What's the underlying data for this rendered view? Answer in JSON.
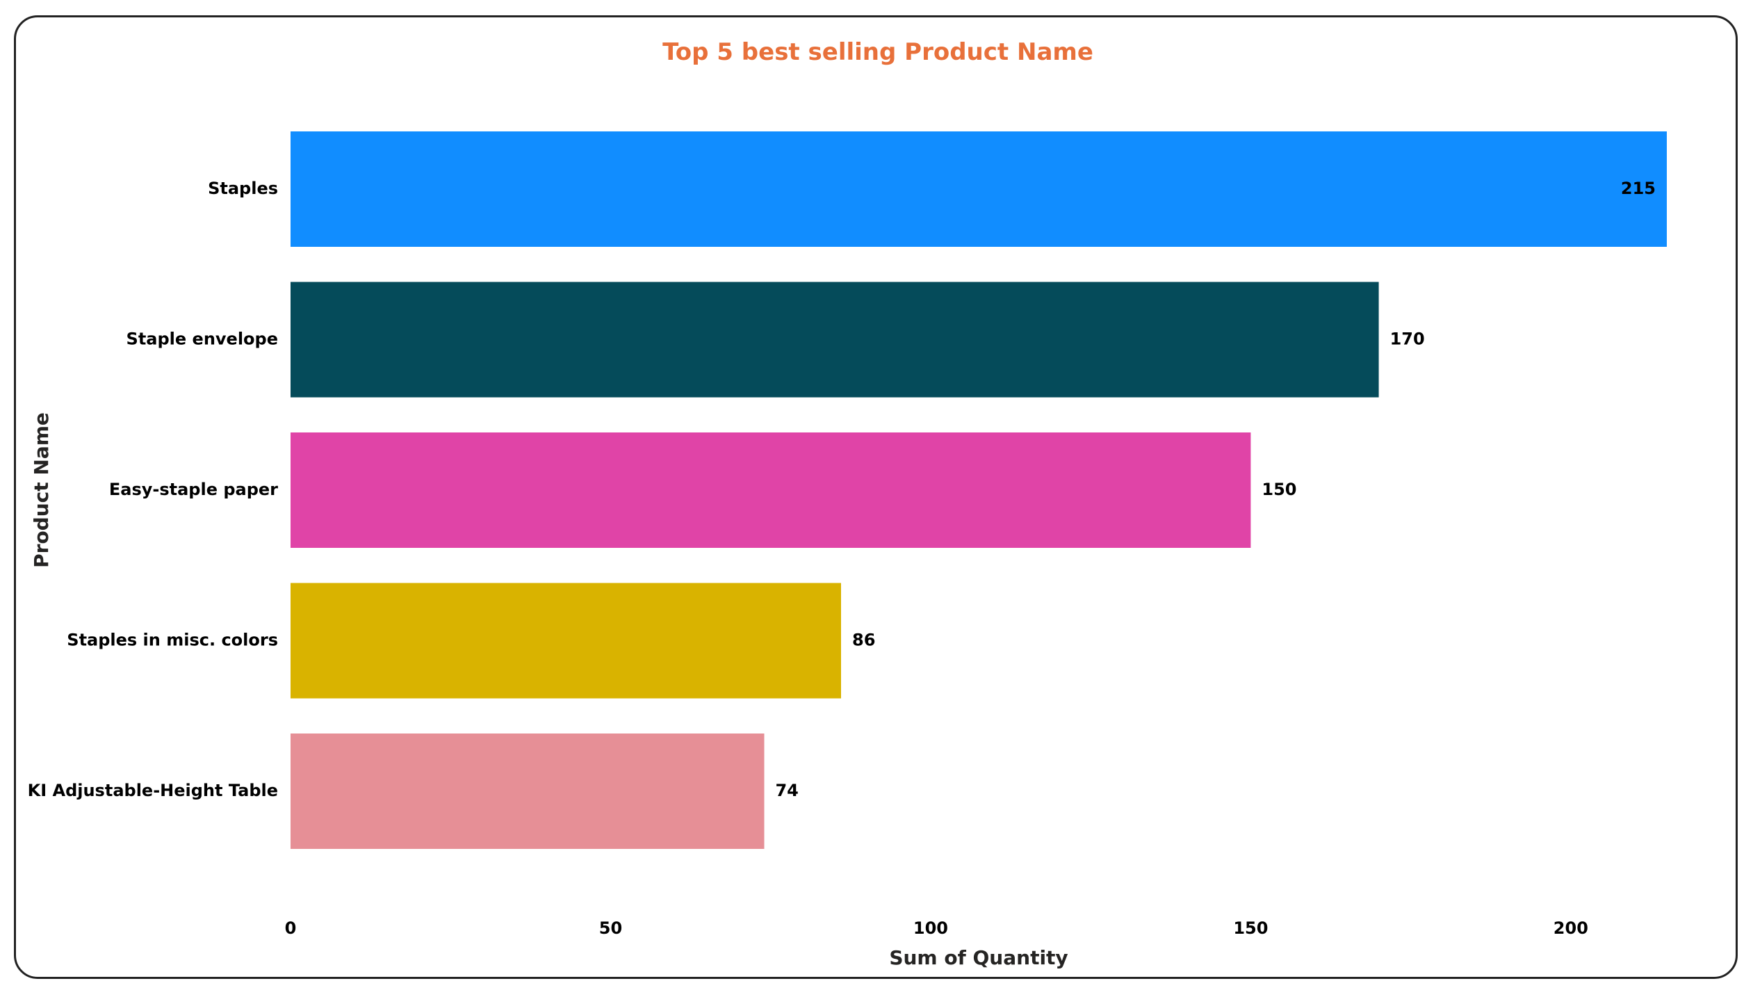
{
  "chart_data": {
    "type": "bar",
    "orientation": "horizontal",
    "title": "Top 5 best selling Product Name",
    "xlabel": "Sum of Quantity",
    "ylabel": "Product Name",
    "categories": [
      "Staples",
      "Staple envelope",
      "Easy-staple paper",
      "Staples in misc. colors",
      "KI Adjustable-Height Table"
    ],
    "values": [
      215,
      170,
      150,
      86,
      74
    ],
    "colors": [
      "#118DFF",
      "#054B5A",
      "#E044A7",
      "#D9B300",
      "#E68F96"
    ],
    "xlim": [
      0,
      215
    ],
    "xticks": [
      0,
      50,
      100,
      150,
      200
    ],
    "grid": false,
    "legend": "none",
    "data_labels": true
  }
}
